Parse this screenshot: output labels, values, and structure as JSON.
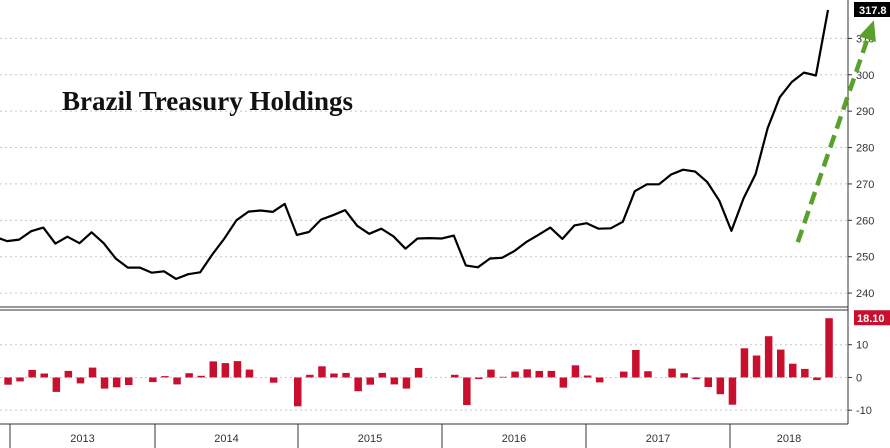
{
  "chart_data": [
    {
      "type": "line",
      "title": "Brazil Treasury Holdings",
      "xlabel": "",
      "ylabel": "",
      "ylim": [
        237,
        320
      ],
      "yticks": [
        240,
        250,
        260,
        270,
        280,
        290,
        300,
        310
      ],
      "last_value_label": "317.8",
      "grid": true,
      "line_color": "#000000",
      "badge_color": "#000000",
      "arrow_color": "#5aa02c",
      "arrow": {
        "from": [
          66.5,
          254
        ],
        "to": [
          72.8,
          315
        ]
      },
      "series": [
        {
          "values": [
            255.5,
            254.3,
            254.7,
            257,
            258,
            253.6,
            255.5,
            253.7,
            256.7,
            253.7,
            249.5,
            247,
            247,
            245.6,
            246,
            243.9,
            245.2,
            245.7,
            250.6,
            255,
            260,
            262.4,
            262.7,
            262.3,
            264.5,
            256,
            256.8,
            260.2,
            261.4,
            262.8,
            258.5,
            256.3,
            257.7,
            255.6,
            252.2,
            255,
            255.1,
            255,
            255.8,
            247.6,
            247.1,
            249.5,
            249.7,
            251.5,
            254,
            256,
            258,
            254.9,
            258.6,
            259.2,
            257.7,
            257.8,
            259.6,
            268,
            269.9,
            269.9,
            272.6,
            273.9,
            273.4,
            270.5,
            265.4,
            257.1,
            266,
            272.7,
            285.3,
            293.8,
            298,
            300.6,
            299.8,
            317.8
          ]
        }
      ]
    },
    {
      "type": "bar",
      "title": "",
      "ylim": [
        -13,
        20
      ],
      "yticks": [
        -10,
        0,
        10
      ],
      "last_value_label": "18.10",
      "bar_color": "#c8102e",
      "badge_color": "#c8102e",
      "grid": true,
      "values": [
        -2.2,
        -1.2,
        2.3,
        1.2,
        -4.4,
        2,
        -1.8,
        3,
        -3.4,
        -3,
        -2.3,
        0,
        -1.4,
        0.4,
        -2.1,
        1.3,
        0.5,
        4.9,
        4.4,
        5,
        2.4,
        0,
        -1.6,
        0,
        -8.8,
        0.8,
        3.4,
        1.2,
        1.4,
        -4.2,
        -2.2,
        1.4,
        -2.1,
        -3.4,
        2.9,
        0,
        0,
        0.8,
        -8.4,
        -0.5,
        2.4,
        0.2,
        1.8,
        2.5,
        2,
        2,
        -3.1,
        3.7,
        0.6,
        -1.5,
        0,
        1.8,
        8.4,
        1.9,
        0,
        2.7,
        1.3,
        -0.5,
        -2.9,
        -5.1,
        -8.3,
        8.9,
        6.7,
        12.6,
        8.5,
        4.2,
        2.6,
        -0.8,
        18.1
      ]
    }
  ],
  "x_axis": {
    "years": [
      "2013",
      "2014",
      "2015",
      "2016",
      "2017",
      "2018"
    ]
  }
}
